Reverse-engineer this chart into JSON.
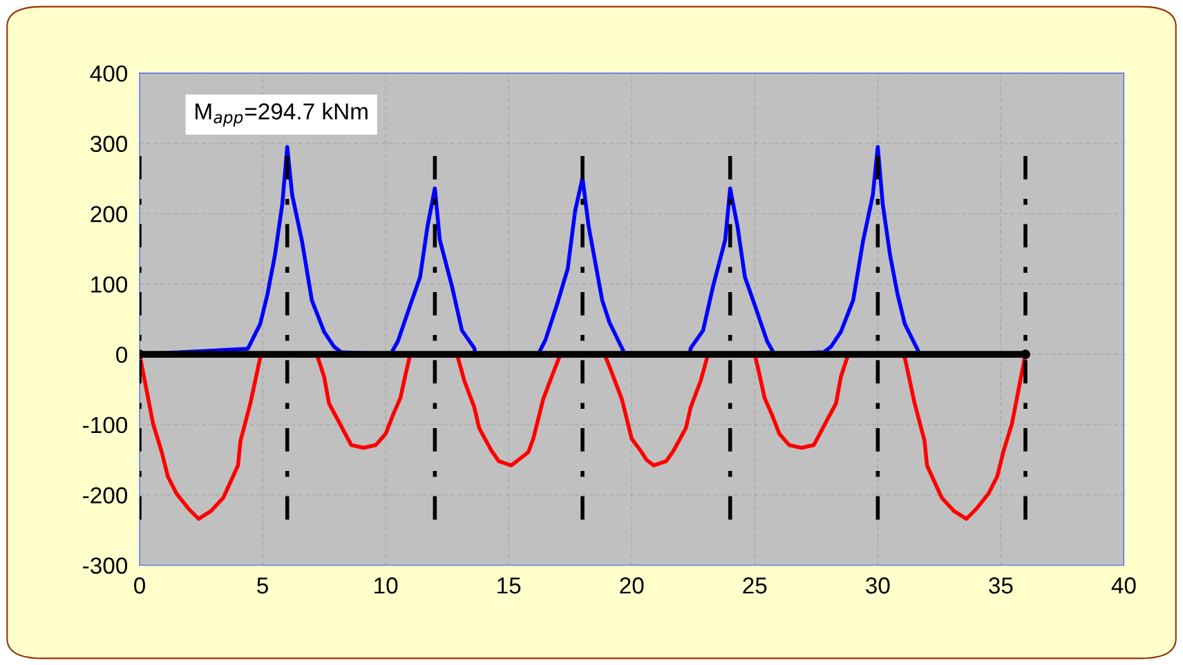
{
  "chart_data": {
    "type": "line",
    "xlim": [
      0,
      40
    ],
    "ylim": [
      -300,
      400
    ],
    "xticks": [
      0,
      5,
      10,
      15,
      20,
      25,
      30,
      35,
      40
    ],
    "yticks": [
      -300,
      -200,
      -100,
      0,
      100,
      200,
      300,
      400
    ],
    "grid": true,
    "annotations": [
      "M$_{app}$=294.7 kNm"
    ],
    "series": [
      {
        "color": "#ff0000",
        "x": [
          0,
          0.3,
          0.55,
          0.9,
          1.15,
          1.5,
          2.0,
          2.4,
          2.9,
          3.4,
          4.0,
          4.1,
          4.5,
          4.9,
          5.0,
          7.2,
          7.5,
          7.7,
          8.1,
          8.6,
          9.1,
          9.6,
          10.0,
          10.3,
          10.6,
          10.8,
          11.0,
          12.9,
          13.2,
          13.6,
          13.8,
          14.3,
          14.6,
          15.1,
          15.4,
          15.8,
          16.0,
          16.4,
          16.8,
          17.1,
          18.9,
          19.2,
          19.6,
          20.0,
          20.4,
          20.6,
          20.9,
          21.4,
          21.7,
          22.2,
          22.4,
          22.8,
          23.1,
          25.0,
          25.2,
          25.4,
          25.7,
          26.0,
          26.4,
          26.9,
          27.4,
          27.9,
          28.3,
          28.5,
          28.8,
          28.8,
          31.0,
          31.1,
          31.5,
          31.9,
          32.0,
          32.6,
          33.1,
          33.6,
          34.0,
          34.5,
          34.85,
          35.1,
          35.45,
          35.7,
          36.0
        ],
        "values": [
          0,
          -54,
          -99,
          -139,
          -174,
          -198,
          -220,
          -234,
          -223,
          -204,
          -158,
          -123,
          -70,
          -5,
          0,
          0,
          -32,
          -70,
          -96,
          -129,
          -133,
          -129,
          -113,
          -86,
          -62,
          -30,
          0,
          0,
          -38,
          -75,
          -105,
          -137,
          -152,
          -158,
          -150,
          -139,
          -120,
          -64,
          -27,
          0,
          0,
          -27,
          -64,
          -120,
          -139,
          -150,
          -158,
          -152,
          -137,
          -105,
          -75,
          -38,
          0,
          0,
          -30,
          -62,
          -86,
          -113,
          -129,
          -133,
          -129,
          -96,
          -70,
          -32,
          0,
          0,
          0,
          -5,
          -70,
          -123,
          -158,
          -204,
          -223,
          -234,
          -220,
          -198,
          -174,
          -139,
          -99,
          -54,
          0
        ]
      },
      {
        "color": "#0000ff",
        "x": [
          0,
          4.4,
          4.9,
          5.2,
          5.5,
          5.8,
          6.0,
          6.2,
          6.6,
          7.0,
          7.5,
          7.9,
          8.2,
          10.2,
          10.5,
          11.0,
          11.4,
          11.7,
          12.0,
          12.2,
          12.7,
          13.1,
          13.6,
          13.65,
          16.2,
          16.5,
          17.0,
          17.4,
          17.7,
          18.0,
          18.25,
          18.8,
          19.1,
          19.7,
          19.8,
          22.35,
          22.4,
          22.9,
          23.3,
          23.8,
          24.0,
          24.3,
          24.6,
          25.0,
          25.5,
          25.8,
          27.8,
          28.1,
          28.5,
          29.0,
          29.4,
          29.8,
          30.0,
          30.2,
          30.5,
          30.8,
          31.1,
          31.6,
          31.7,
          36.0
        ],
        "values": [
          0,
          8,
          43,
          86,
          141,
          214,
          295,
          227,
          161,
          77,
          32,
          11,
          3,
          0,
          19,
          70,
          110,
          182,
          236,
          163,
          96,
          34,
          9,
          0,
          0,
          21,
          75,
          122,
          204,
          251,
          182,
          77,
          45,
          2,
          0,
          0,
          9,
          34,
          96,
          163,
          236,
          182,
          110,
          70,
          19,
          0,
          3,
          11,
          32,
          77,
          161,
          227,
          295,
          214,
          141,
          86,
          43,
          8,
          0,
          0
        ]
      },
      {
        "color": "#000000",
        "x": [
          0,
          36
        ],
        "values": [
          0,
          0
        ],
        "marker": "circle"
      },
      {
        "color": "#000000",
        "x": [
          0,
          0
        ],
        "values": [
          -235,
          282
        ],
        "line_style": "dashed"
      },
      {
        "color": "#000000",
        "x": [
          6,
          6
        ],
        "values": [
          -235,
          282
        ],
        "line_style": "dashed"
      },
      {
        "color": "#000000",
        "x": [
          12,
          12
        ],
        "values": [
          -235,
          282
        ],
        "line_style": "dashed"
      },
      {
        "color": "#000000",
        "x": [
          18,
          18
        ],
        "values": [
          -235,
          282
        ],
        "line_style": "dashed"
      },
      {
        "color": "#000000",
        "x": [
          24,
          24
        ],
        "values": [
          -235,
          282
        ],
        "line_style": "dashed"
      },
      {
        "color": "#000000",
        "x": [
          30,
          30
        ],
        "values": [
          -235,
          282
        ],
        "line_style": "dashed"
      },
      {
        "color": "#000000",
        "x": [
          36,
          36
        ],
        "values": [
          -235,
          282
        ],
        "line_style": "dashed"
      }
    ]
  }
}
